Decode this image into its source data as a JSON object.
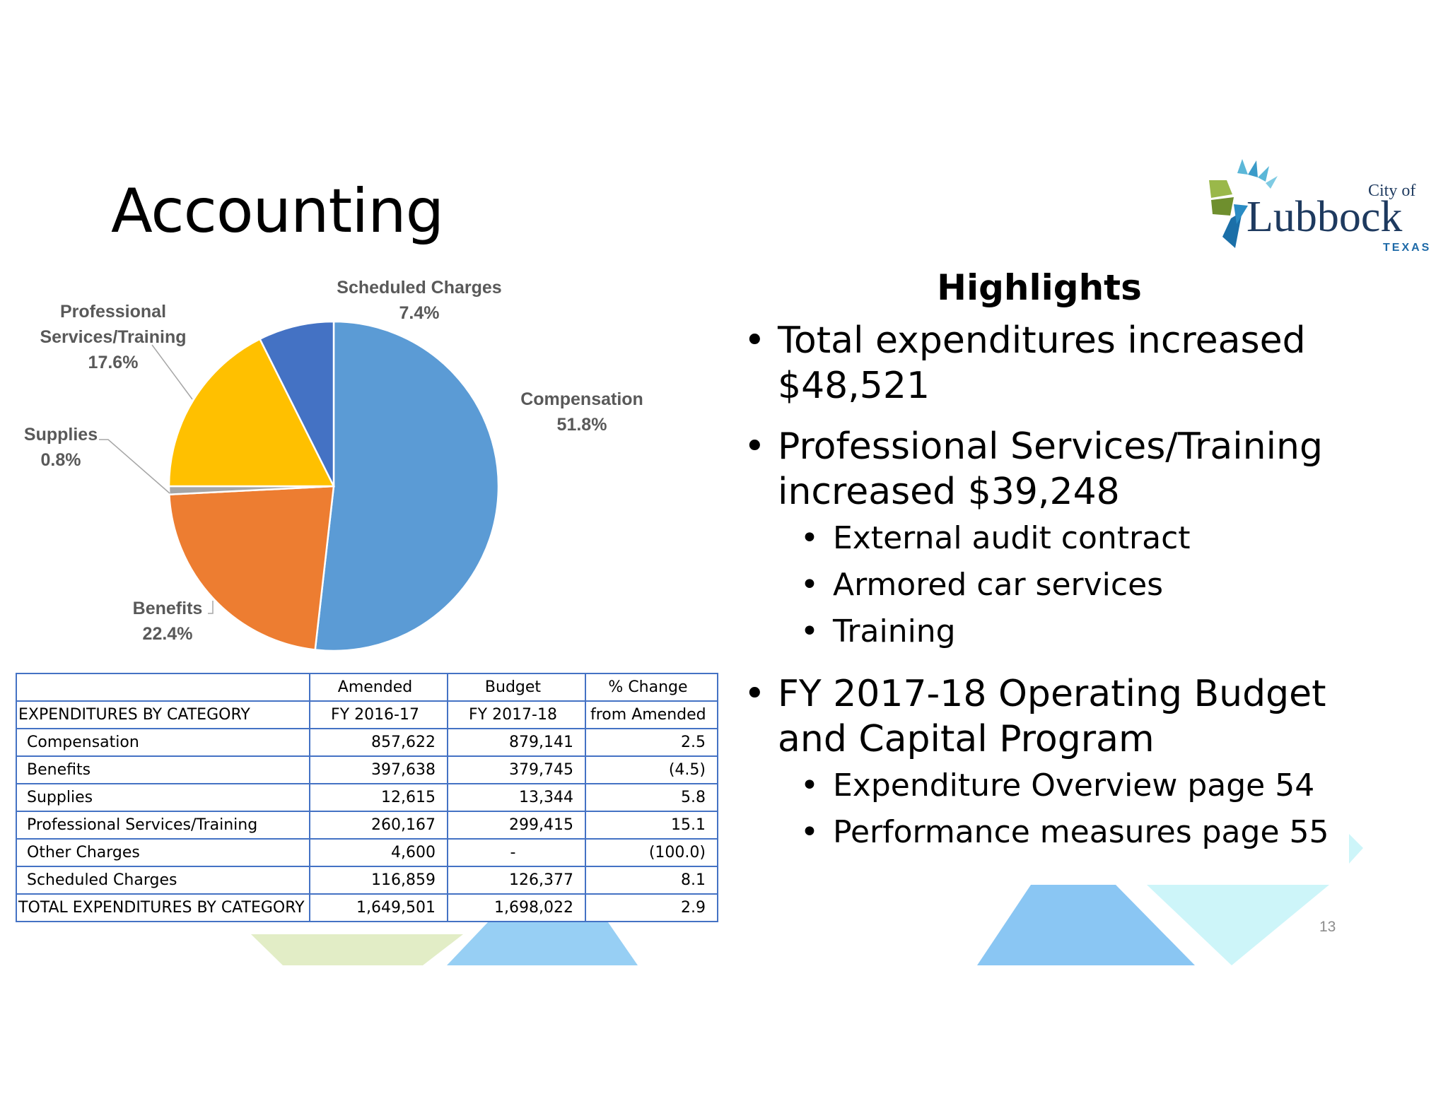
{
  "slide": {
    "title": "Accounting",
    "page_number": "13"
  },
  "logo": {
    "line1": "City of",
    "line2": "Lubbock",
    "line3": "TEXAS"
  },
  "colors": {
    "compensation": "#5b9bd5",
    "benefits": "#ed7d31",
    "supplies": "#a5a5a5",
    "professional": "#ffc000",
    "scheduled": "#4472c4",
    "table_border": "#4472c4"
  },
  "chart_data": {
    "type": "pie",
    "slices": [
      {
        "label": "Compensation",
        "value": 51.8,
        "pct": "51.8%"
      },
      {
        "label": "Benefits",
        "value": 22.4,
        "pct": "22.4%"
      },
      {
        "label": "Supplies",
        "value": 0.8,
        "pct": "0.8%"
      },
      {
        "label": "Professional Services/Training",
        "value": 17.6,
        "pct": "17.6%"
      },
      {
        "label": "Scheduled Charges",
        "value": 7.4,
        "pct": "7.4%"
      }
    ]
  },
  "table": {
    "header_row1": [
      "",
      "Amended",
      "Budget",
      "% Change"
    ],
    "header_row2": [
      "EXPENDITURES BY CATEGORY",
      "FY 2016-17",
      "FY 2017-18",
      "from Amended"
    ],
    "rows": [
      [
        "Compensation",
        "857,622",
        "879,141",
        "2.5"
      ],
      [
        "Benefits",
        "397,638",
        "379,745",
        "(4.5)"
      ],
      [
        "Supplies",
        "12,615",
        "13,344",
        "5.8"
      ],
      [
        "Professional Services/Training",
        "260,167",
        "299,415",
        "15.1"
      ],
      [
        "Other Charges",
        "4,600",
        "-",
        "(100.0)"
      ],
      [
        "Scheduled Charges",
        "116,859",
        "126,377",
        "8.1"
      ]
    ],
    "total": [
      "TOTAL EXPENDITURES BY CATEGORY",
      "1,649,501",
      "1,698,022",
      "2.9"
    ]
  },
  "highlights": {
    "title": "Highlights",
    "b1": "Total expenditures increased $48,521",
    "b2": "Professional Services/Training increased $39,248",
    "b2_subs": [
      "External audit contract",
      "Armored car services",
      "Training"
    ],
    "b3": "FY 2017-18 Operating Budget and Capital Program",
    "b3_subs": [
      "Expenditure Overview page 54",
      "Performance measures page 55"
    ]
  }
}
